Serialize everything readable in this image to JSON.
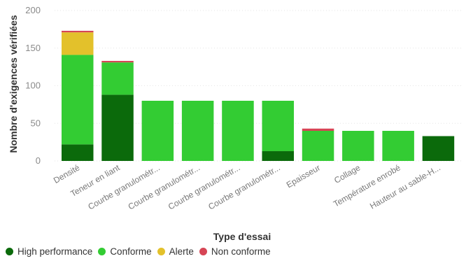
{
  "chart_data": {
    "type": "bar",
    "stacked": true,
    "xlabel": "Type d'essai",
    "ylabel": "Nombre d'exigences vérifiées",
    "ylim": [
      0,
      200
    ],
    "yticks": [
      "0",
      "50",
      "100",
      "150",
      "200"
    ],
    "grid": true,
    "legend_position": "bottom-left",
    "categories": [
      "Densité",
      "Teneur en liant",
      "Courbe granulométr...",
      "Courbe granulométr...",
      "Courbe granulométr...",
      "Courbe granulométr...",
      "Epaisseur",
      "Collage",
      "Température enrobé",
      "Hauteur au sable-H..."
    ],
    "series": [
      {
        "name": "High performance",
        "color": "#0b6a0b",
        "values": [
          22,
          88,
          0,
          0,
          0,
          13,
          0,
          0,
          0,
          33
        ]
      },
      {
        "name": "Conforme",
        "color": "#33cc33",
        "values": [
          119,
          43,
          80,
          80,
          80,
          67,
          40,
          40,
          40,
          0
        ]
      },
      {
        "name": "Alerte",
        "color": "#e3c12b",
        "values": [
          30,
          0,
          0,
          0,
          0,
          0,
          0,
          0,
          0,
          0
        ]
      },
      {
        "name": "Non conforme",
        "color": "#d64555",
        "values": [
          2,
          2,
          0,
          0,
          0,
          0,
          3,
          0,
          0,
          0
        ]
      }
    ]
  }
}
